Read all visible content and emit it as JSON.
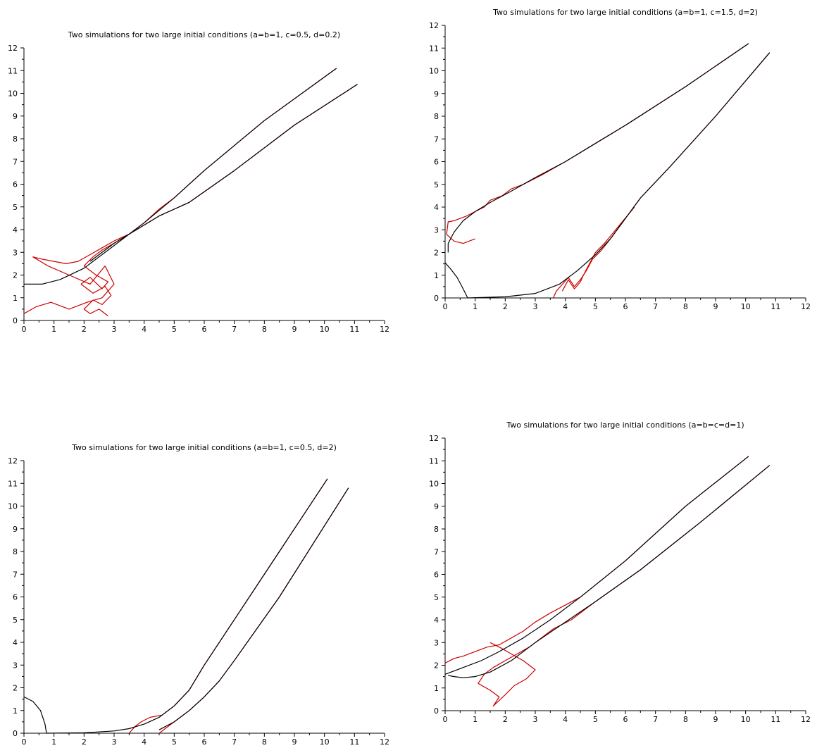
{
  "colors": {
    "stochastic": "#cc0000",
    "deterministic": "#000000",
    "axis": "#000000"
  },
  "chart_data": [
    {
      "type": "line",
      "title": "Two simulations for two  large initial conditions (a=b=1, c=0.5, d=0.2)",
      "xlim": [
        0,
        12
      ],
      "ylim": [
        0,
        12
      ],
      "xticks": [
        "0",
        "1",
        "2",
        "3",
        "4",
        "5",
        "6",
        "7",
        "8",
        "9",
        "10",
        "11",
        "12"
      ],
      "yticks": [
        "0",
        "1",
        "2",
        "3",
        "4",
        "5",
        "6",
        "7",
        "8",
        "9",
        "10",
        "11",
        "12"
      ],
      "grid": false,
      "deterministic": [
        {
          "x": [
            10.4,
            8,
            6,
            5,
            4,
            3,
            2,
            1.2,
            0.6,
            0.2,
            0
          ],
          "y": [
            11.1,
            8.8,
            6.6,
            5.4,
            4.3,
            3.3,
            2.3,
            1.8,
            1.6,
            1.6,
            1.6
          ]
        },
        {
          "x": [
            11.1,
            9,
            7,
            5.5,
            4.5,
            4,
            3,
            2.2
          ],
          "y": [
            10.4,
            8.6,
            6.6,
            5.2,
            4.6,
            4.2,
            3.4,
            2.6
          ]
        }
      ],
      "stochastic": [
        {
          "x": [
            10.4,
            8,
            6,
            5,
            4.5,
            4,
            3.5,
            3,
            2.6,
            2.2,
            1.8,
            1.4,
            1,
            0.6,
            0.3,
            0.8,
            1.5,
            2.2,
            2.7,
            3.0,
            2.6,
            2.1,
            1.5,
            0.9,
            0.4,
            0
          ],
          "y": [
            11.1,
            8.8,
            6.6,
            5.4,
            4.9,
            4.3,
            3.8,
            3.5,
            3.2,
            2.9,
            2.6,
            2.5,
            2.6,
            2.7,
            2.8,
            2.4,
            2.0,
            1.6,
            2.4,
            1.6,
            1.0,
            0.8,
            0.5,
            0.8,
            0.6,
            0.3
          ]
        },
        {
          "x": [
            11.1,
            9,
            7,
            5.5,
            4.5,
            4,
            3.5,
            3,
            2.6,
            2.3,
            2.0,
            2.4,
            2.8,
            2.6,
            2.2,
            1.9,
            2.3,
            2.7,
            2.9,
            2.6,
            2.3,
            2.0,
            2.2,
            2.5,
            2.8
          ],
          "y": [
            10.4,
            8.6,
            6.6,
            5.2,
            4.6,
            4.2,
            3.8,
            3.4,
            3.1,
            2.8,
            2.4,
            2.0,
            1.7,
            1.4,
            1.9,
            1.6,
            1.2,
            1.5,
            1.1,
            0.7,
            0.9,
            0.5,
            0.3,
            0.5,
            0.2
          ]
        }
      ]
    },
    {
      "type": "line",
      "title": "Two simulations for two  large initial conditions (a=b=1, c=1.5, d=2)",
      "xlim": [
        0,
        12
      ],
      "ylim": [
        0,
        12
      ],
      "xticks": [
        "0",
        "1",
        "2",
        "3",
        "4",
        "5",
        "6",
        "7",
        "8",
        "9",
        "10",
        "11",
        "12"
      ],
      "yticks": [
        "0",
        "1",
        "2",
        "3",
        "4",
        "5",
        "6",
        "7",
        "8",
        "9",
        "10",
        "11",
        "12"
      ],
      "grid": false,
      "deterministic": [
        {
          "x": [
            10.1,
            8,
            6,
            5,
            4,
            3,
            2.2,
            1.5,
            1,
            0.6,
            0.3,
            0.1,
            0.1
          ],
          "y": [
            11.2,
            9.3,
            7.6,
            6.8,
            6.0,
            5.3,
            4.7,
            4.2,
            3.8,
            3.4,
            2.9,
            2.4,
            2.0
          ]
        },
        {
          "x": [
            0,
            0.2,
            0.4,
            0.6,
            0.75
          ],
          "y": [
            1.55,
            1.25,
            0.9,
            0.4,
            0
          ]
        },
        {
          "x": [
            0.75,
            2,
            3,
            3.8,
            4.4,
            5,
            5.5,
            6,
            6.5,
            7.5,
            9,
            10.8
          ],
          "y": [
            0,
            0.05,
            0.2,
            0.6,
            1.2,
            1.9,
            2.6,
            3.5,
            4.4,
            5.8,
            8.0,
            10.8
          ]
        }
      ],
      "stochastic": [
        {
          "x": [
            10.1,
            8,
            6,
            5,
            4,
            3.2,
            2.6,
            2.2,
            1.9,
            1.5,
            1.3,
            1.0,
            0.7,
            0.5,
            0.3,
            0.1,
            0.05,
            0.3,
            0.6,
            1.0
          ],
          "y": [
            11.2,
            9.3,
            7.6,
            6.8,
            6.0,
            5.4,
            5.0,
            4.8,
            4.5,
            4.3,
            4.0,
            3.8,
            3.6,
            3.5,
            3.4,
            3.35,
            2.8,
            2.5,
            2.4,
            2.6
          ]
        },
        {
          "x": [
            10.8,
            9,
            7.5,
            6.5,
            6,
            5.5,
            5.2,
            4.9,
            4.7,
            4.5,
            4.3,
            4.1,
            3.9,
            3.7,
            3.6
          ],
          "y": [
            10.8,
            8.0,
            5.8,
            4.4,
            3.5,
            2.6,
            2.1,
            1.7,
            1.2,
            0.8,
            0.5,
            0.9,
            0.6,
            0.3,
            0
          ]
        },
        {
          "x": [
            6.3,
            5.8,
            5.3,
            5,
            4.8,
            4.6,
            4.5,
            4.3,
            4.1,
            3.9
          ],
          "y": [
            4.0,
            3.2,
            2.4,
            2.0,
            1.5,
            1.0,
            0.7,
            0.4,
            0.8,
            0.3
          ]
        }
      ]
    },
    {
      "type": "line",
      "title": "Two simulations for two  large initial conditions (a=b=1, c=0.5, d=2)",
      "xlim": [
        0,
        12
      ],
      "ylim": [
        0,
        12
      ],
      "xticks": [
        "0",
        "1",
        "2",
        "3",
        "4",
        "5",
        "6",
        "7",
        "8",
        "9",
        "10",
        "11",
        "12"
      ],
      "yticks": [
        "0",
        "1",
        "2",
        "3",
        "4",
        "5",
        "6",
        "7",
        "8",
        "9",
        "10",
        "11",
        "12"
      ],
      "grid": false,
      "deterministic": [
        {
          "x": [
            0,
            0.3,
            0.55,
            0.7,
            0.75
          ],
          "y": [
            1.6,
            1.4,
            1.0,
            0.4,
            0
          ]
        },
        {
          "x": [
            0.75,
            2,
            3,
            3.5,
            4,
            4.5,
            5,
            5.5,
            6,
            7,
            8.5,
            10.1
          ],
          "y": [
            0,
            0.02,
            0.1,
            0.2,
            0.4,
            0.7,
            1.2,
            1.9,
            3.0,
            5.0,
            8.0,
            11.2
          ]
        },
        {
          "x": [
            4.5,
            5,
            5.5,
            6,
            6.5,
            7,
            8.5,
            10.8
          ],
          "y": [
            0.15,
            0.5,
            1.0,
            1.6,
            2.3,
            3.2,
            6.0,
            10.8
          ]
        }
      ],
      "stochastic": [
        {
          "x": [
            10.1,
            8.5,
            7,
            6,
            5.5,
            5,
            4.6,
            4.2,
            3.9,
            3.7,
            3.5
          ],
          "y": [
            11.2,
            8.0,
            5.0,
            3.0,
            1.9,
            1.2,
            0.8,
            0.7,
            0.5,
            0.3,
            0
          ]
        },
        {
          "x": [
            10.8,
            8.5,
            7,
            6.5,
            6,
            5.5,
            5,
            4.7,
            4.5
          ],
          "y": [
            10.8,
            6.0,
            3.2,
            2.3,
            1.6,
            1.0,
            0.5,
            0.2,
            0
          ]
        }
      ]
    },
    {
      "type": "line",
      "title": "Two simulations for two  large initial conditions (a=b=c=d=1)",
      "xlim": [
        0,
        12
      ],
      "ylim": [
        0,
        12
      ],
      "xticks": [
        "0",
        "1",
        "2",
        "3",
        "4",
        "5",
        "6",
        "7",
        "8",
        "9",
        "10",
        "11",
        "12"
      ],
      "yticks": [
        "0",
        "1",
        "2",
        "3",
        "4",
        "5",
        "6",
        "7",
        "8",
        "9",
        "10",
        "11",
        "12"
      ],
      "grid": false,
      "deterministic": [
        {
          "x": [
            10.1,
            8,
            6,
            4.5,
            3.5,
            2.6,
            1.8,
            1.2,
            0.6,
            0.2,
            0
          ],
          "y": [
            11.2,
            9.0,
            6.6,
            5.0,
            4.0,
            3.2,
            2.6,
            2.2,
            1.9,
            1.7,
            1.6
          ]
        },
        {
          "x": [
            10.8,
            8.5,
            6.5,
            5,
            4,
            3,
            2.2,
            1.5,
            1.0,
            0.6,
            0.3,
            0.1
          ],
          "y": [
            10.8,
            8.3,
            6.2,
            4.8,
            3.9,
            3.0,
            2.2,
            1.7,
            1.5,
            1.45,
            1.5,
            1.55
          ]
        }
      ],
      "stochastic": [
        {
          "x": [
            10.1,
            8,
            6,
            4.5,
            3.5,
            3.0,
            2.6,
            2.2,
            1.8,
            1.4,
            1.0,
            0.6,
            0.3,
            0
          ],
          "y": [
            11.2,
            9.0,
            6.6,
            5.0,
            4.3,
            3.9,
            3.5,
            3.2,
            2.9,
            2.8,
            2.6,
            2.4,
            2.3,
            2.1
          ]
        },
        {
          "x": [
            10.8,
            8.5,
            6.5,
            5,
            4.2,
            3.6,
            3.2,
            2.8,
            2.4,
            2.0,
            1.6,
            1.3,
            1.1,
            1.5,
            1.8,
            1.6,
            2.0,
            2.3,
            2.7,
            3.0,
            2.6,
            2.2,
            1.8,
            1.5
          ],
          "y": [
            10.8,
            8.3,
            6.2,
            4.8,
            4.0,
            3.6,
            3.2,
            2.8,
            2.5,
            2.2,
            1.9,
            1.6,
            1.2,
            0.9,
            0.6,
            0.2,
            0.7,
            1.1,
            1.4,
            1.8,
            2.2,
            2.5,
            2.8,
            3.0
          ]
        }
      ]
    }
  ]
}
